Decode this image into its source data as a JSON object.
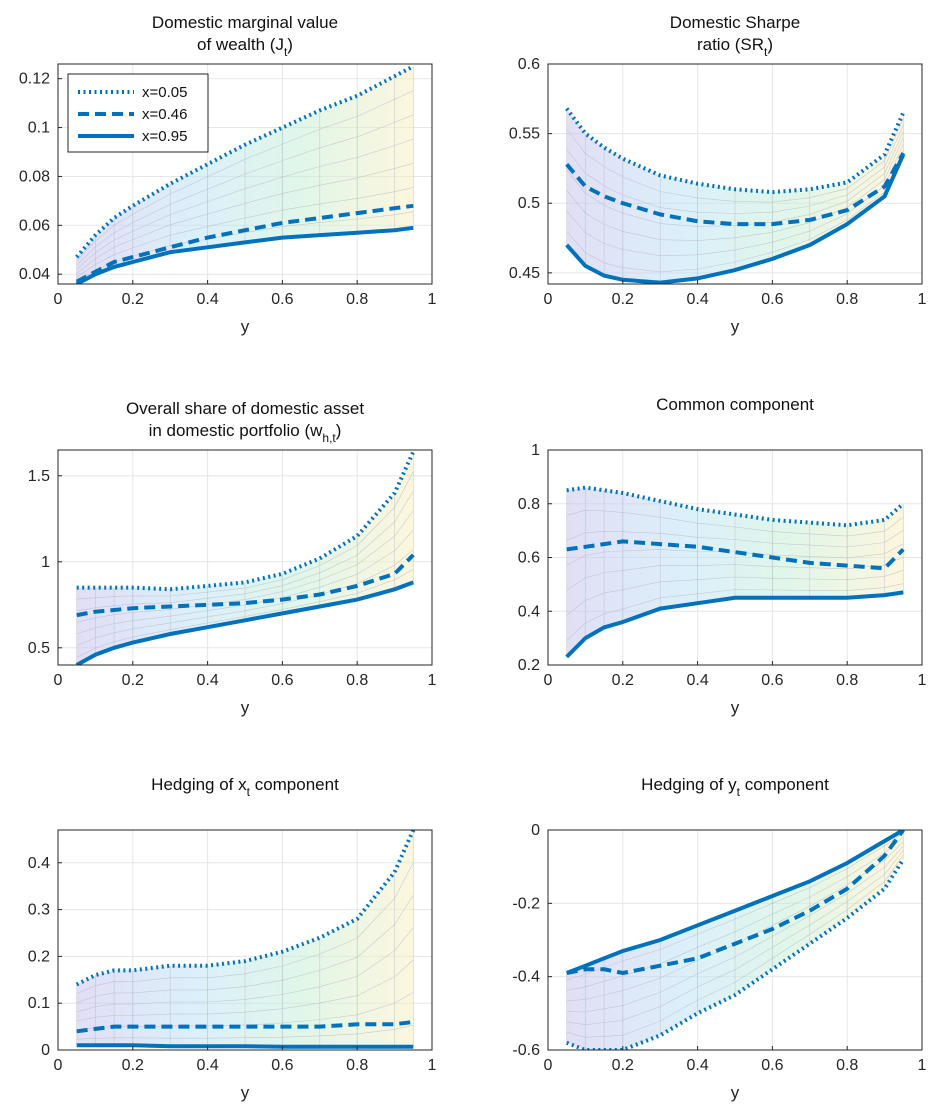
{
  "figure": {
    "colors": {
      "series": "#0072BD",
      "axis": "#262626",
      "grid": "#e6e6e6"
    },
    "legend_entries": [
      "x=0.05",
      "x=0.46",
      "x=0.95"
    ]
  },
  "chart_data": [
    {
      "type": "line",
      "title": [
        "Domestic marginal value",
        "of wealth (J",
        "t",
        ")"
      ],
      "xlabel": "y",
      "ylabel": "",
      "xlim": [
        0,
        1
      ],
      "ylim": [
        0.036,
        0.126
      ],
      "xticks": [
        0,
        0.2,
        0.4,
        0.6,
        0.8,
        1
      ],
      "xticklabels": [
        "0",
        "0.2",
        "0.4",
        "0.6",
        "0.8",
        "1"
      ],
      "yticks": [
        0.04,
        0.06,
        0.08,
        0.1,
        0.12
      ],
      "yticklabels": [
        "0.04",
        "0.06",
        "0.08",
        "0.1",
        "0.12"
      ],
      "grid": true,
      "legend": "top-left",
      "x": [
        0.05,
        0.1,
        0.15,
        0.2,
        0.3,
        0.4,
        0.5,
        0.6,
        0.7,
        0.8,
        0.9,
        0.95
      ],
      "series": [
        {
          "name": "x=0.05",
          "style": "dotted",
          "values": [
            0.047,
            0.056,
            0.063,
            0.068,
            0.077,
            0.085,
            0.093,
            0.1,
            0.107,
            0.113,
            0.121,
            0.125
          ]
        },
        {
          "name": "x=0.46",
          "style": "dashed",
          "values": [
            0.037,
            0.041,
            0.045,
            0.047,
            0.051,
            0.055,
            0.058,
            0.061,
            0.063,
            0.065,
            0.067,
            0.068
          ]
        },
        {
          "name": "x=0.95",
          "style": "solid",
          "values": [
            0.036,
            0.04,
            0.043,
            0.045,
            0.049,
            0.051,
            0.053,
            0.055,
            0.056,
            0.057,
            0.058,
            0.059
          ]
        }
      ]
    },
    {
      "type": "line",
      "title": [
        "Domestic Sharpe",
        "ratio (SR",
        "t",
        ")"
      ],
      "xlabel": "y",
      "ylabel": "",
      "xlim": [
        0,
        1
      ],
      "ylim": [
        0.442,
        0.6
      ],
      "xticks": [
        0,
        0.2,
        0.4,
        0.6,
        0.8,
        1
      ],
      "xticklabels": [
        "0",
        "0.2",
        "0.4",
        "0.6",
        "0.8",
        "1"
      ],
      "yticks": [
        0.45,
        0.5,
        0.55,
        0.6
      ],
      "yticklabels": [
        "0.45",
        "0.5",
        "0.55",
        "0.6"
      ],
      "grid": true,
      "x": [
        0.05,
        0.1,
        0.15,
        0.2,
        0.3,
        0.4,
        0.5,
        0.6,
        0.7,
        0.8,
        0.9,
        0.95
      ],
      "series": [
        {
          "name": "x=0.05",
          "style": "dotted",
          "values": [
            0.568,
            0.55,
            0.54,
            0.532,
            0.52,
            0.514,
            0.51,
            0.508,
            0.51,
            0.515,
            0.535,
            0.565
          ]
        },
        {
          "name": "x=0.46",
          "style": "dashed",
          "values": [
            0.528,
            0.512,
            0.505,
            0.5,
            0.492,
            0.487,
            0.485,
            0.485,
            0.488,
            0.495,
            0.512,
            0.536
          ]
        },
        {
          "name": "x=0.95",
          "style": "solid",
          "values": [
            0.47,
            0.455,
            0.448,
            0.445,
            0.443,
            0.446,
            0.452,
            0.46,
            0.47,
            0.485,
            0.505,
            0.535
          ]
        }
      ]
    },
    {
      "type": "line",
      "title": [
        "Overall share of domestic asset",
        "in domestic portfolio (w",
        "h,t",
        ")"
      ],
      "xlabel": "y",
      "ylabel": "",
      "xlim": [
        0,
        1
      ],
      "ylim": [
        0.4,
        1.65
      ],
      "xticks": [
        0,
        0.2,
        0.4,
        0.6,
        0.8,
        1
      ],
      "xticklabels": [
        "0",
        "0.2",
        "0.4",
        "0.6",
        "0.8",
        "1"
      ],
      "yticks": [
        0.5,
        1,
        1.5
      ],
      "yticklabels": [
        "0.5",
        "1",
        "1.5"
      ],
      "grid": true,
      "x": [
        0.05,
        0.1,
        0.15,
        0.2,
        0.3,
        0.4,
        0.5,
        0.6,
        0.7,
        0.8,
        0.9,
        0.95
      ],
      "series": [
        {
          "name": "x=0.05",
          "style": "dotted",
          "values": [
            0.85,
            0.85,
            0.85,
            0.85,
            0.84,
            0.86,
            0.88,
            0.93,
            1.02,
            1.15,
            1.4,
            1.64
          ]
        },
        {
          "name": "x=0.46",
          "style": "dashed",
          "values": [
            0.69,
            0.71,
            0.72,
            0.73,
            0.74,
            0.75,
            0.76,
            0.78,
            0.81,
            0.86,
            0.93,
            1.04
          ]
        },
        {
          "name": "x=0.95",
          "style": "solid",
          "values": [
            0.4,
            0.46,
            0.5,
            0.53,
            0.58,
            0.62,
            0.66,
            0.7,
            0.74,
            0.78,
            0.84,
            0.88
          ]
        }
      ]
    },
    {
      "type": "line",
      "title": [
        "Common component",
        "",
        "",
        ""
      ],
      "xlabel": "y",
      "ylabel": "",
      "xlim": [
        0,
        1
      ],
      "ylim": [
        0.2,
        1
      ],
      "xticks": [
        0,
        0.2,
        0.4,
        0.6,
        0.8,
        1
      ],
      "xticklabels": [
        "0",
        "0.2",
        "0.4",
        "0.6",
        "0.8",
        "1"
      ],
      "yticks": [
        0.2,
        0.4,
        0.6,
        0.8,
        1
      ],
      "yticklabels": [
        "0.2",
        "0.4",
        "0.6",
        "0.8",
        "1"
      ],
      "grid": true,
      "x": [
        0.05,
        0.1,
        0.15,
        0.2,
        0.3,
        0.4,
        0.5,
        0.6,
        0.7,
        0.8,
        0.9,
        0.95
      ],
      "series": [
        {
          "name": "x=0.05",
          "style": "dotted",
          "values": [
            0.85,
            0.86,
            0.85,
            0.84,
            0.81,
            0.78,
            0.76,
            0.74,
            0.73,
            0.72,
            0.74,
            0.8
          ]
        },
        {
          "name": "x=0.46",
          "style": "dashed",
          "values": [
            0.63,
            0.64,
            0.65,
            0.66,
            0.65,
            0.64,
            0.62,
            0.6,
            0.58,
            0.57,
            0.56,
            0.63
          ]
        },
        {
          "name": "x=0.95",
          "style": "solid",
          "values": [
            0.23,
            0.3,
            0.34,
            0.36,
            0.41,
            0.43,
            0.45,
            0.45,
            0.45,
            0.45,
            0.46,
            0.47
          ]
        }
      ]
    },
    {
      "type": "line",
      "title": [
        "Hedging of x",
        "t",
        " component",
        ""
      ],
      "xlabel": "y",
      "ylabel": "",
      "xlim": [
        0,
        1
      ],
      "ylim": [
        0,
        0.47
      ],
      "xticks": [
        0,
        0.2,
        0.4,
        0.6,
        0.8,
        1
      ],
      "xticklabels": [
        "0",
        "0.2",
        "0.4",
        "0.6",
        "0.8",
        "1"
      ],
      "yticks": [
        0,
        0.1,
        0.2,
        0.3,
        0.4
      ],
      "yticklabels": [
        "0",
        "0.1",
        "0.2",
        "0.3",
        "0.4"
      ],
      "grid": true,
      "x": [
        0.05,
        0.1,
        0.15,
        0.2,
        0.3,
        0.4,
        0.5,
        0.6,
        0.7,
        0.8,
        0.9,
        0.95
      ],
      "series": [
        {
          "name": "x=0.05",
          "style": "dotted",
          "values": [
            0.14,
            0.16,
            0.17,
            0.17,
            0.18,
            0.18,
            0.19,
            0.21,
            0.24,
            0.28,
            0.38,
            0.47
          ]
        },
        {
          "name": "x=0.46",
          "style": "dashed",
          "values": [
            0.04,
            0.045,
            0.05,
            0.05,
            0.05,
            0.05,
            0.05,
            0.05,
            0.05,
            0.055,
            0.055,
            0.06
          ]
        },
        {
          "name": "x=0.95",
          "style": "solid",
          "values": [
            0.01,
            0.01,
            0.01,
            0.01,
            0.008,
            0.008,
            0.008,
            0.007,
            0.007,
            0.007,
            0.007,
            0.007
          ]
        }
      ]
    },
    {
      "type": "line",
      "title": [
        "Hedging of y",
        "t",
        " component",
        ""
      ],
      "xlabel": "y",
      "ylabel": "",
      "xlim": [
        0,
        1
      ],
      "ylim": [
        -0.6,
        0
      ],
      "xticks": [
        0,
        0.2,
        0.4,
        0.6,
        0.8,
        1
      ],
      "xticklabels": [
        "0",
        "0.2",
        "0.4",
        "0.6",
        "0.8",
        "1"
      ],
      "yticks": [
        -0.6,
        -0.4,
        -0.2,
        0
      ],
      "yticklabels": [
        "-0.6",
        "-0.4",
        "-0.2",
        "0"
      ],
      "grid": true,
      "x": [
        0.05,
        0.1,
        0.15,
        0.2,
        0.3,
        0.4,
        0.5,
        0.6,
        0.7,
        0.8,
        0.9,
        0.95
      ],
      "series": [
        {
          "name": "x=0.05",
          "style": "dotted",
          "values": [
            -0.58,
            -0.6,
            -0.6,
            -0.6,
            -0.56,
            -0.5,
            -0.45,
            -0.38,
            -0.31,
            -0.24,
            -0.16,
            -0.08
          ]
        },
        {
          "name": "x=0.46",
          "style": "dashed",
          "values": [
            -0.39,
            -0.38,
            -0.38,
            -0.39,
            -0.37,
            -0.35,
            -0.31,
            -0.27,
            -0.22,
            -0.16,
            -0.07,
            0
          ]
        },
        {
          "name": "x=0.95",
          "style": "solid",
          "values": [
            -0.39,
            -0.37,
            -0.35,
            -0.33,
            -0.3,
            -0.26,
            -0.22,
            -0.18,
            -0.14,
            -0.09,
            -0.03,
            0
          ]
        }
      ]
    }
  ]
}
